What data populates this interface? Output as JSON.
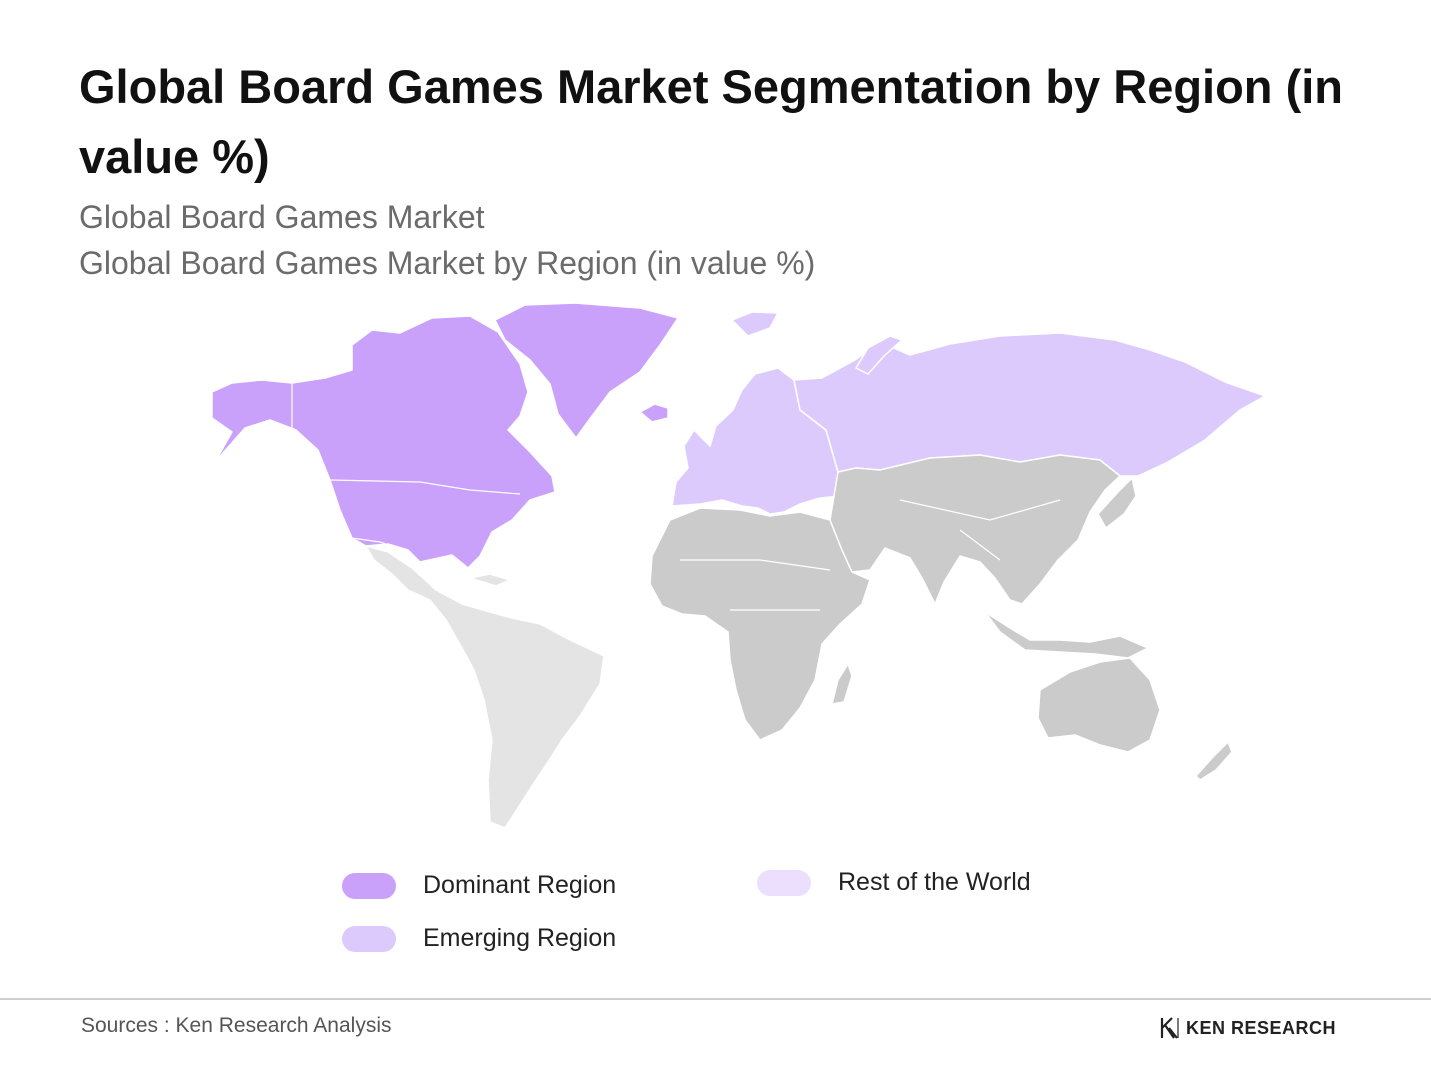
{
  "header": {
    "title": "Global Board Games Market Segmentation by Region (in value %)",
    "subtitle_1": "Global Board Games Market",
    "subtitle_2": "Global Board Games Market by Region (in value %)"
  },
  "colors": {
    "dominant": "#c9a1fb",
    "emerging": "#dccafd",
    "rest_of_world_legend": "#ecdffd",
    "latin_america": "#e4e4e4",
    "other_regions": "#cbcbcb",
    "borders": "#ffffff"
  },
  "map_regions": [
    {
      "name": "north-america",
      "category": "Dominant Region"
    },
    {
      "name": "greenland",
      "category": "Dominant Region"
    },
    {
      "name": "europe",
      "category": "Emerging Region"
    },
    {
      "name": "russia",
      "category": "Emerging Region"
    },
    {
      "name": "latin-america",
      "category": "Rest of the World"
    },
    {
      "name": "africa",
      "category": "Rest of the World"
    },
    {
      "name": "asia",
      "category": "Rest of the World"
    },
    {
      "name": "oceania",
      "category": "Rest of the World"
    }
  ],
  "legend": {
    "dominant": "Dominant Region",
    "emerging": "Emerging Region",
    "rest": "Rest of the World"
  },
  "footer": {
    "source": "Sources : Ken Research Analysis",
    "logo_text": "KEN RESEARCH"
  }
}
